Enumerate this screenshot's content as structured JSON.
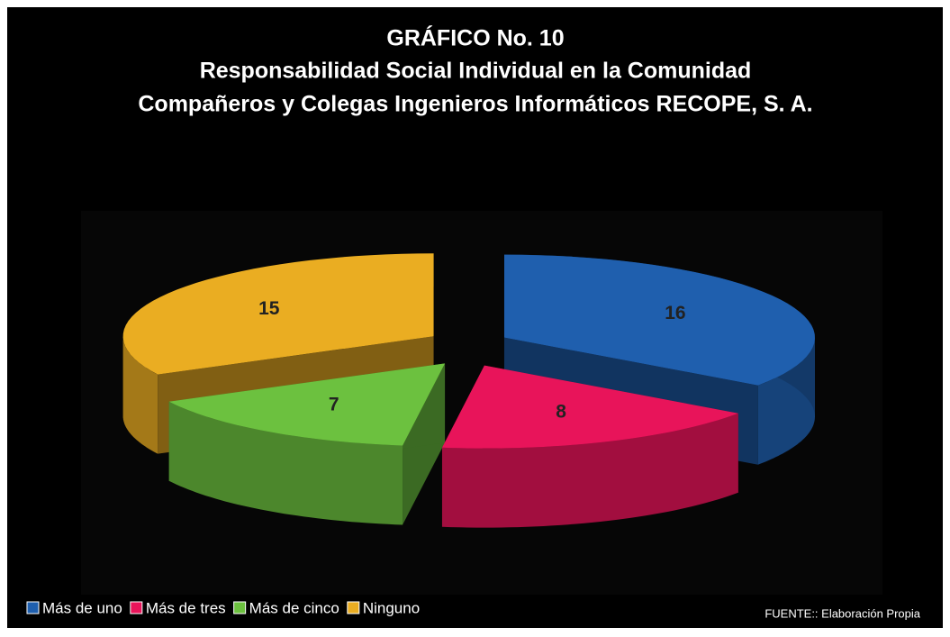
{
  "chart_data": {
    "type": "pie",
    "title": [
      "GRÁFICO No. 10",
      "Responsabilidad Social Individual en la Comunidad",
      "Compañeros y Colegas Ingenieros Informáticos RECOPE, S. A."
    ],
    "categories": [
      "Más de uno",
      "Más de tres",
      "Más de cinco",
      "Ninguno"
    ],
    "values": [
      16,
      8,
      7,
      15
    ],
    "colors": [
      "#1f5fae",
      "#e8145a",
      "#6cc13f",
      "#eaad22"
    ],
    "source": "FUENTE:: Elaboración Propia"
  }
}
